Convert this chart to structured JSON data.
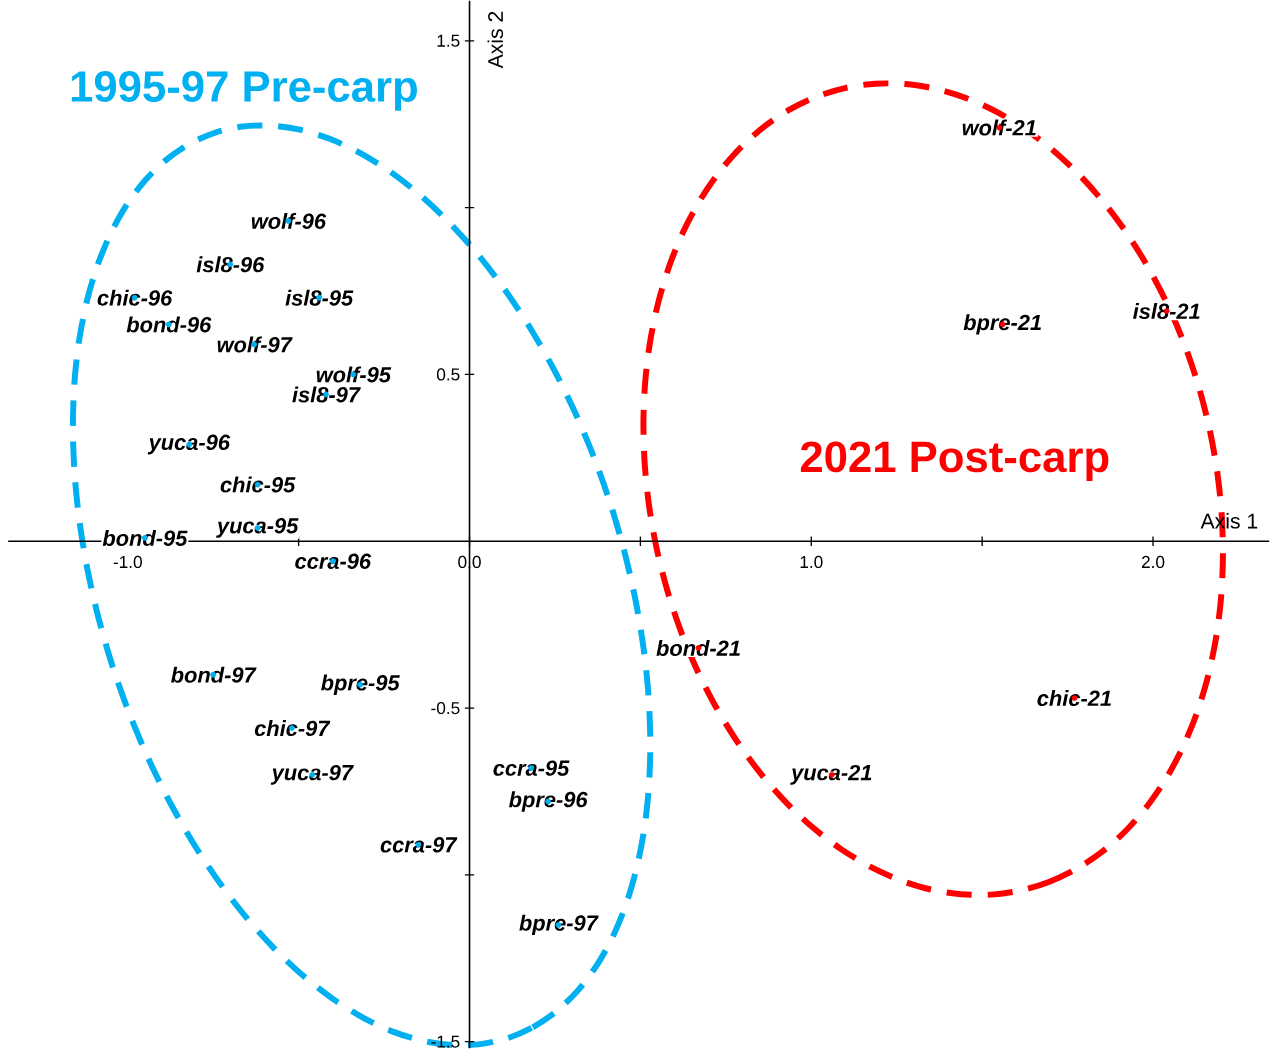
{
  "chart_data": {
    "type": "scatter",
    "xlabel": "Axis 1",
    "ylabel": "Axis 2",
    "xlim": [
      -1.35,
      2.34
    ],
    "ylim": [
      -1.52,
      1.62
    ],
    "xticks": [
      {
        "value": -1.0,
        "label": "-1.0"
      },
      {
        "value": -0.5,
        "label": null
      },
      {
        "value": 0,
        "label": "0.0"
      },
      {
        "value": 0.5,
        "label": null
      },
      {
        "value": 1.0,
        "label": "1.0"
      },
      {
        "value": 1.5,
        "label": null
      },
      {
        "value": 2.0,
        "label": "2.0"
      }
    ],
    "yticks": [
      1.5,
      {
        "value": 1.0,
        "label": null
      },
      0.5,
      {
        "value": -1.0,
        "label": null
      },
      -0.5,
      -1.5
    ],
    "grid": false,
    "legend": false,
    "marker": "circle",
    "series": [
      {
        "name": "1995-97  Pre-carp",
        "color": "#00b0f0",
        "x": [
          -0.53,
          -0.7,
          -0.98,
          -0.44,
          -0.88,
          -0.63,
          -0.34,
          -0.42,
          -0.82,
          -0.62,
          -0.62,
          -0.95,
          -0.4,
          -0.75,
          -0.32,
          -0.52,
          -0.46,
          0.18,
          0.23,
          -0.15,
          0.26
        ],
        "values": [
          0.96,
          0.83,
          0.73,
          0.73,
          0.65,
          0.59,
          0.5,
          0.44,
          0.29,
          0.17,
          0.04,
          0.01,
          -0.06,
          -0.4,
          -0.43,
          -0.56,
          -0.7,
          -0.68,
          -0.78,
          -0.91,
          -1.15
        ],
        "value_labels": [
          "wolf-96",
          "isl8-96",
          "chic-96",
          "isl8-95",
          "bond-96",
          "wolf-97",
          "wolf-95",
          "isl8-97",
          "yuca-96",
          "chic-95",
          "yuca-95",
          "bond-95",
          "ccra-96",
          "bond-97",
          "bpre-95",
          "chic-97",
          "yuca-97",
          "ccra-95",
          "bpre-96",
          "ccra-97",
          "bpre-97"
        ]
      },
      {
        "name": "2021  Post-carp",
        "color": "#ff0000",
        "x": [
          1.55,
          1.56,
          2.04,
          0.67,
          1.77,
          1.06
        ],
        "values": [
          1.24,
          0.65,
          0.69,
          -0.32,
          -0.47,
          -0.7
        ],
        "value_labels": [
          "wolf-21",
          "bpre-21",
          "isl8-21",
          "bond-21",
          "chic-21",
          "yuca-21"
        ]
      }
    ]
  }
}
